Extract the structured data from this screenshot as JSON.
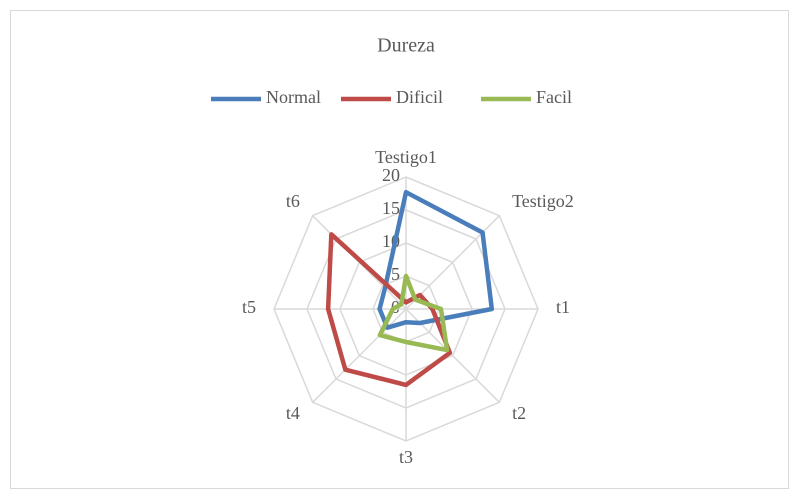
{
  "chart_data": {
    "type": "radar",
    "title": "Dureza",
    "categories": [
      "Testigo1",
      "Testigo2",
      "t1",
      "t2",
      "t3",
      "t4",
      "t5",
      "t6"
    ],
    "series": [
      {
        "name": "Normal",
        "color": "#4a7ebb",
        "values": [
          17.7,
          16.4,
          13,
          3,
          2,
          4,
          4,
          4.5
        ]
      },
      {
        "name": "Dificil",
        "color": "#be4b48",
        "values": [
          1,
          3,
          4,
          9.4,
          11.5,
          13,
          11.8,
          16
        ]
      },
      {
        "name": "Facil",
        "color": "#98b954",
        "values": [
          5,
          2,
          5.3,
          8.8,
          5,
          5.6,
          2,
          1
        ]
      }
    ],
    "ylim": [
      0,
      20
    ],
    "yticks": [
      0,
      5,
      10,
      15,
      20
    ],
    "grid": true,
    "legend": "top"
  }
}
